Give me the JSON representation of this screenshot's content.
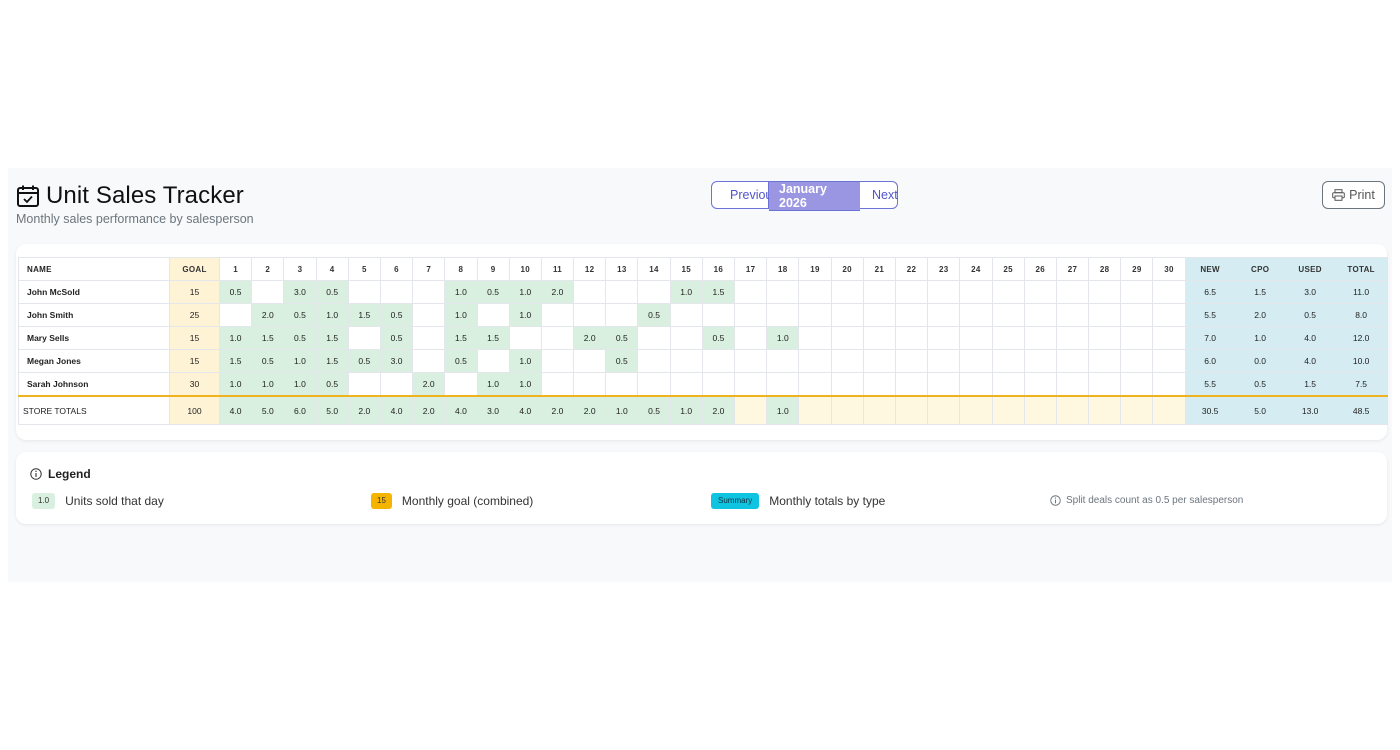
{
  "header": {
    "title": "Unit Sales Tracker",
    "subtitle": "Monthly sales performance by salesperson",
    "prev_label": "Previous",
    "current_month": "January 2026",
    "next_label": "Next",
    "print_label": "Print"
  },
  "table": {
    "name_header": "NAME",
    "goal_header": "GOAL",
    "days": [
      "1",
      "2",
      "3",
      "4",
      "5",
      "6",
      "7",
      "8",
      "9",
      "10",
      "11",
      "12",
      "13",
      "14",
      "15",
      "16",
      "17",
      "18",
      "19",
      "20",
      "21",
      "22",
      "23",
      "24",
      "25",
      "26",
      "27",
      "28",
      "29",
      "30"
    ],
    "summary_headers": [
      "NEW",
      "CPO",
      "USED",
      "TOTAL"
    ],
    "rows": [
      {
        "name": "John McSold",
        "goal": "15",
        "days": [
          "0.5",
          "",
          "3.0",
          "0.5",
          "",
          "",
          "",
          "1.0",
          "0.5",
          "1.0",
          "2.0",
          "",
          "",
          "",
          "1.0",
          "1.5",
          "",
          "",
          "",
          "",
          "",
          "",
          "",
          "",
          "",
          "",
          "",
          "",
          "",
          ""
        ],
        "summary": [
          "6.5",
          "1.5",
          "3.0",
          "11.0"
        ]
      },
      {
        "name": "John Smith",
        "goal": "25",
        "days": [
          "",
          "2.0",
          "0.5",
          "1.0",
          "1.5",
          "0.5",
          "",
          "1.0",
          "",
          "1.0",
          "",
          "",
          "",
          "0.5",
          "",
          "",
          "",
          "",
          "",
          "",
          "",
          "",
          "",
          "",
          "",
          "",
          "",
          "",
          "",
          ""
        ],
        "summary": [
          "5.5",
          "2.0",
          "0.5",
          "8.0"
        ]
      },
      {
        "name": "Mary Sells",
        "goal": "15",
        "days": [
          "1.0",
          "1.5",
          "0.5",
          "1.5",
          "",
          "0.5",
          "",
          "1.5",
          "1.5",
          "",
          "",
          "2.0",
          "0.5",
          "",
          "",
          "0.5",
          "",
          "1.0",
          "",
          "",
          "",
          "",
          "",
          "",
          "",
          "",
          "",
          "",
          "",
          ""
        ],
        "summary": [
          "7.0",
          "1.0",
          "4.0",
          "12.0"
        ]
      },
      {
        "name": "Megan Jones",
        "goal": "15",
        "days": [
          "1.5",
          "0.5",
          "1.0",
          "1.5",
          "0.5",
          "3.0",
          "",
          "0.5",
          "",
          "1.0",
          "",
          "",
          "0.5",
          "",
          "",
          "",
          "",
          "",
          "",
          "",
          "",
          "",
          "",
          "",
          "",
          "",
          "",
          "",
          "",
          ""
        ],
        "summary": [
          "6.0",
          "0.0",
          "4.0",
          "10.0"
        ]
      },
      {
        "name": "Sarah Johnson",
        "goal": "30",
        "days": [
          "1.0",
          "1.0",
          "1.0",
          "0.5",
          "",
          "",
          "2.0",
          "",
          "1.0",
          "1.0",
          "",
          "",
          "",
          "",
          "",
          "",
          "",
          "",
          "",
          "",
          "",
          "",
          "",
          "",
          "",
          "",
          "",
          "",
          "",
          ""
        ],
        "summary": [
          "5.5",
          "0.5",
          "1.5",
          "7.5"
        ]
      }
    ],
    "totals": {
      "name": "STORE TOTALS",
      "goal": "100",
      "days": [
        "4.0",
        "5.0",
        "6.0",
        "5.0",
        "2.0",
        "4.0",
        "2.0",
        "4.0",
        "3.0",
        "4.0",
        "2.0",
        "2.0",
        "1.0",
        "0.5",
        "1.0",
        "2.0",
        "",
        "1.0",
        "",
        "",
        "",
        "",
        "",
        "",
        "",
        "",
        "",
        "",
        "",
        ""
      ],
      "summary": [
        "30.5",
        "5.0",
        "13.0",
        "48.5"
      ]
    }
  },
  "legend": {
    "title": "Legend",
    "units_swatch": "1.0",
    "units_label": "Units sold that day",
    "goal_swatch": "15",
    "goal_label": "Monthly goal (combined)",
    "summary_swatch": "Summary",
    "summary_label": "Monthly totals by type",
    "note": "Split deals count as 0.5 per salesperson"
  },
  "colors": {
    "accent": "#6d72d8",
    "current_month_bg": "#9b96e1",
    "filled_cell": "#d9efdf",
    "goal_cell": "#fff3d6",
    "summary_cell": "#d5edf2",
    "totals_border": "#f0b320"
  },
  "icons": {
    "title": "calendar-check-icon",
    "prev": "chevron-left-icon",
    "next": "chevron-right-icon",
    "print": "printer-icon",
    "legend": "info-circle-icon",
    "note": "info-circle-icon"
  }
}
